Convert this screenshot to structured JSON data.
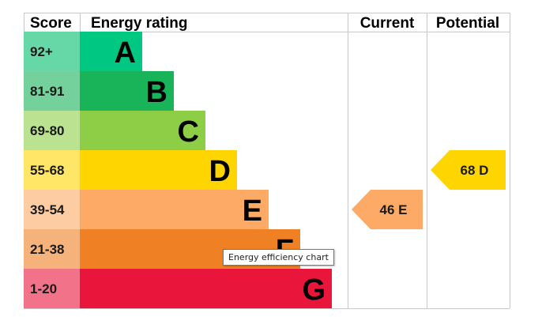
{
  "chart_data": {
    "type": "bar",
    "headers": {
      "score": "Score",
      "rating": "Energy rating",
      "current": "Current",
      "potential": "Potential"
    },
    "bands": [
      {
        "score": "92+",
        "letter": "A",
        "color": "#00c781",
        "score_bg": "#66d8a7"
      },
      {
        "score": "81-91",
        "letter": "B",
        "color": "#19b459",
        "score_bg": "#75d19b"
      },
      {
        "score": "69-80",
        "letter": "C",
        "color": "#8dce46",
        "score_bg": "#bae290"
      },
      {
        "score": "55-68",
        "letter": "D",
        "color": "#ffd500",
        "score_bg": "#ffe666"
      },
      {
        "score": "39-54",
        "letter": "E",
        "color": "#fcaa65",
        "score_bg": "#fdcca3"
      },
      {
        "score": "21-38",
        "letter": "F",
        "color": "#ef8023",
        "score_bg": "#f5b37b"
      },
      {
        "score": "1-20",
        "letter": "G",
        "color": "#e9153b",
        "score_bg": "#f27389"
      }
    ],
    "current": {
      "value": 46,
      "letter": "E",
      "label": "46 E",
      "color": "#fcaa65"
    },
    "potential": {
      "value": 68,
      "letter": "D",
      "label": "68 D",
      "color": "#ffd500"
    }
  },
  "tooltip": "Energy efficiency chart"
}
